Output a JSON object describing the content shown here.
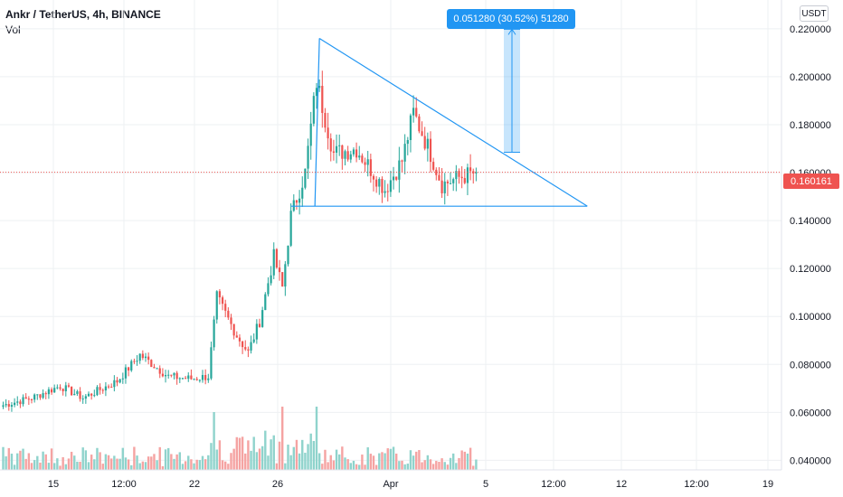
{
  "header": {
    "title": "Ankr / TetherUS, 4h, BINANCE",
    "indicator": "Vol",
    "currency_button": "USDT"
  },
  "measure_label": "0.051280 (30.52%) 51280",
  "last_price_label": "0.160161",
  "colors": {
    "up": "#26a69a",
    "down": "#ef5350",
    "up_volume": "#8fd3cc",
    "down_volume": "#f5a3a2",
    "drawing": "#2196f3",
    "grid": "#eef0f3"
  },
  "chart_data": {
    "type": "candlestick",
    "symbol": "Ankr / TetherUS",
    "interval": "4h",
    "exchange": "BINANCE",
    "y_axis": {
      "ticks": [
        "0.220000",
        "0.200000",
        "0.180000",
        "0.160000",
        "0.140000",
        "0.120000",
        "0.100000",
        "0.080000",
        "0.060000",
        "0.040000"
      ],
      "range": [
        0.036,
        0.232
      ]
    },
    "x_axis": {
      "ticks": [
        "15",
        "12:00",
        "22",
        "26",
        "Apr",
        "5",
        "12:00",
        "12",
        "12:00",
        "19"
      ]
    },
    "last_price": 0.160161,
    "anchors": [
      {
        "bar": 0,
        "price": 0.063
      },
      {
        "bar": 10,
        "price": 0.066
      },
      {
        "bar": 20,
        "price": 0.071
      },
      {
        "bar": 28,
        "price": 0.066
      },
      {
        "bar": 40,
        "price": 0.073
      },
      {
        "bar": 48,
        "price": 0.084
      },
      {
        "bar": 58,
        "price": 0.075
      },
      {
        "bar": 66,
        "price": 0.074
      },
      {
        "bar": 72,
        "price": 0.075
      },
      {
        "bar": 75,
        "price": 0.108
      },
      {
        "bar": 82,
        "price": 0.092
      },
      {
        "bar": 86,
        "price": 0.085
      },
      {
        "bar": 90,
        "price": 0.098
      },
      {
        "bar": 95,
        "price": 0.125
      },
      {
        "bar": 98,
        "price": 0.112
      },
      {
        "bar": 101,
        "price": 0.142
      },
      {
        "bar": 106,
        "price": 0.16
      },
      {
        "bar": 110,
        "price": 0.198
      },
      {
        "bar": 116,
        "price": 0.168
      },
      {
        "bar": 124,
        "price": 0.17
      },
      {
        "bar": 134,
        "price": 0.153
      },
      {
        "bar": 140,
        "price": 0.165
      },
      {
        "bar": 144,
        "price": 0.185
      },
      {
        "bar": 150,
        "price": 0.168
      },
      {
        "bar": 154,
        "price": 0.155
      },
      {
        "bar": 160,
        "price": 0.158
      },
      {
        "bar": 166,
        "price": 0.16
      }
    ],
    "triangle": {
      "apex": {
        "bar": 111,
        "price": 0.216
      },
      "upper_end": {
        "bar": 205,
        "price": 0.146
      },
      "base_start": {
        "bar": 101,
        "price": 0.146
      },
      "base_end": {
        "bar": 205,
        "price": 0.146
      }
    },
    "target_measure": {
      "from": 0.1685,
      "to": 0.2198,
      "change": 0.05128,
      "percent": 30.52
    }
  }
}
